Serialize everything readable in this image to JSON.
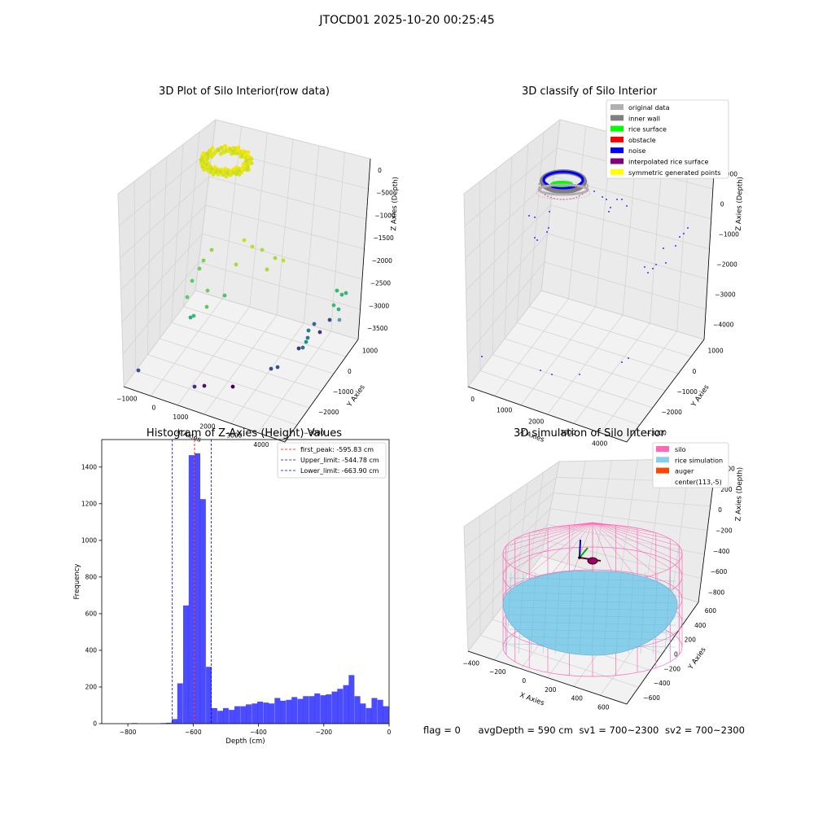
{
  "suptitle": "JTOCD01 2025-10-20 00:25:45",
  "footer": {
    "flag": "flag = 0",
    "avg_depth": "avgDepth = 590 cm",
    "sv1": "sv1 = 700~2300",
    "sv2": "sv2 = 700~2300"
  },
  "colors": {
    "original_data": "#b0b0b0",
    "inner_wall": "#808080",
    "rice_surface": "#00ff00",
    "obstacle": "#ff0000",
    "noise": "#0000ff",
    "interpolated_rice_surface": "#800080",
    "symmetric_generated_points": "#ffff00",
    "silo": "#ff69b4",
    "rice_simulation": "#87ceeb",
    "auger": "#ff4500",
    "histogram": "#0000ff",
    "first_peak_line": "#ff0000",
    "limit_line": "#0000ff"
  },
  "chart_data": [
    {
      "type": "scatter",
      "title": "3D Plot of Silo Interior(row data)",
      "xlabel": "X Axies",
      "ylabel": "Y Axies",
      "zlabel": "Z Axies (Depth)",
      "x_ticks": [
        "−1000",
        "0",
        "1000",
        "2000",
        "3000",
        "4000"
      ],
      "y_ticks": [
        "1000",
        "0",
        "−1000",
        "−2000",
        "−3000"
      ],
      "z_ticks": [
        "0",
        "−500",
        "−1000",
        "−1500",
        "−2000",
        "−2500",
        "−3000",
        "−3500"
      ],
      "colormap": "viridis",
      "grid": true
    },
    {
      "type": "scatter",
      "title": "3D classify of Silo Interior",
      "xlabel": "X Axies",
      "ylabel": "Y Axies",
      "zlabel": "Z Axies (Depth)",
      "x_ticks": [
        "0",
        "1000",
        "2000",
        "3000",
        "4000"
      ],
      "y_ticks": [
        "1000",
        "0",
        "−1000",
        "−2000",
        "−3000"
      ],
      "z_ticks": [
        "1000",
        "0",
        "−1000",
        "−2000",
        "−3000",
        "−4000"
      ],
      "legend": [
        "original data",
        "inner wall",
        "rice surface",
        "obstacle",
        "noise",
        "interpolated rice surface",
        "symmetric generated points"
      ],
      "legend_position": "top-right",
      "grid": true
    },
    {
      "type": "bar",
      "title": "Histogram of Z-Axies (Height) Values",
      "xlabel": "Depth (cm)",
      "ylabel": "Frequency",
      "xlim": [
        -880,
        0
      ],
      "ylim": [
        0,
        1550
      ],
      "x_ticks": [
        -800,
        -600,
        -400,
        -200,
        0
      ],
      "x_tick_labels": [
        "−800",
        "−600",
        "−400",
        "−200",
        "0"
      ],
      "y_ticks": [
        0,
        200,
        400,
        600,
        800,
        1000,
        1200,
        1400
      ],
      "bin_width": 17.5,
      "bins": [
        {
          "x": -780,
          "value": 3
        },
        {
          "x": -692,
          "value": 3
        },
        {
          "x": -675,
          "value": 5
        },
        {
          "x": -657,
          "value": 25
        },
        {
          "x": -640,
          "value": 220
        },
        {
          "x": -622,
          "value": 645
        },
        {
          "x": -605,
          "value": 1465
        },
        {
          "x": -587,
          "value": 1475
        },
        {
          "x": -570,
          "value": 1225
        },
        {
          "x": -552,
          "value": 310
        },
        {
          "x": -535,
          "value": 85
        },
        {
          "x": -517,
          "value": 70
        },
        {
          "x": -500,
          "value": 85
        },
        {
          "x": -482,
          "value": 75
        },
        {
          "x": -465,
          "value": 95
        },
        {
          "x": -447,
          "value": 95
        },
        {
          "x": -430,
          "value": 105
        },
        {
          "x": -412,
          "value": 110
        },
        {
          "x": -395,
          "value": 120
        },
        {
          "x": -377,
          "value": 115
        },
        {
          "x": -360,
          "value": 110
        },
        {
          "x": -342,
          "value": 140
        },
        {
          "x": -325,
          "value": 125
        },
        {
          "x": -307,
          "value": 130
        },
        {
          "x": -290,
          "value": 145
        },
        {
          "x": -272,
          "value": 135
        },
        {
          "x": -255,
          "value": 150
        },
        {
          "x": -237,
          "value": 150
        },
        {
          "x": -220,
          "value": 165
        },
        {
          "x": -202,
          "value": 155
        },
        {
          "x": -185,
          "value": 160
        },
        {
          "x": -167,
          "value": 175
        },
        {
          "x": -150,
          "value": 190
        },
        {
          "x": -132,
          "value": 210
        },
        {
          "x": -115,
          "value": 265
        },
        {
          "x": -97,
          "value": 150
        },
        {
          "x": -80,
          "value": 110
        },
        {
          "x": -62,
          "value": 85
        },
        {
          "x": -45,
          "value": 140
        },
        {
          "x": -27,
          "value": 130
        },
        {
          "x": -10,
          "value": 95
        }
      ],
      "vlines": [
        {
          "name": "first_peak: -595.83 cm",
          "x": -595.83,
          "color": "#ff0000"
        },
        {
          "name": "Upper_limit: -544.78 cm",
          "x": -544.78,
          "color": "#0000ff"
        },
        {
          "name": "Lower_limit: -663.90 cm",
          "x": -663.9,
          "color": "#0000ff"
        }
      ],
      "legend_position": "top-right",
      "grid": false
    },
    {
      "type": "area",
      "title": "3D simulation of Silo Interior",
      "xlabel": "X Axies",
      "ylabel": "Y Axies",
      "zlabel": "Z Axies (Depth)",
      "x_ticks": [
        "−400",
        "−200",
        "0",
        "200",
        "400",
        "600"
      ],
      "y_ticks": [
        "600",
        "400",
        "200",
        "0",
        "−200",
        "−400",
        "−600"
      ],
      "z_ticks": [
        "400",
        "200",
        "0",
        "−200",
        "−400",
        "−600",
        "−800"
      ],
      "legend": [
        "silo",
        "rice simulation",
        "auger",
        "center(113,-5)"
      ],
      "legend_position": "top-right",
      "grid": true
    }
  ]
}
